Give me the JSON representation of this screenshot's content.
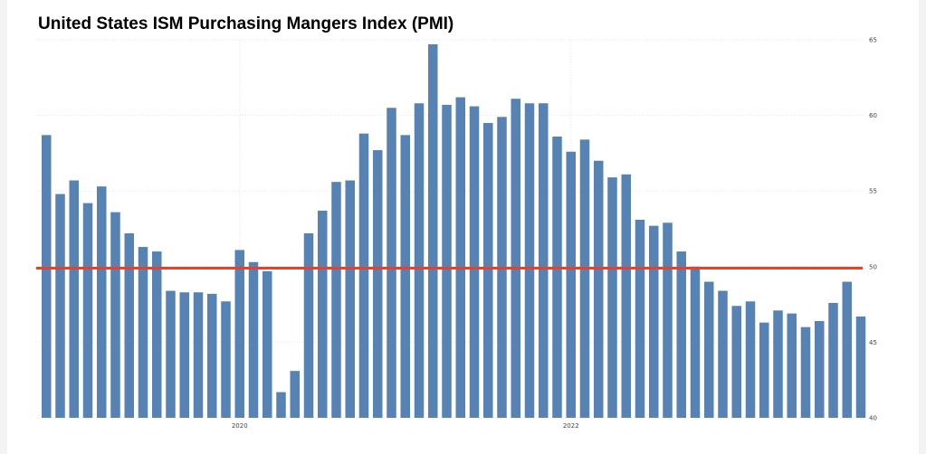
{
  "title": "United States ISM Purchasing Mangers Index (PMI)",
  "colors": {
    "bar": "#5682b4",
    "reference_line": "#e8412a",
    "grid": "#e6e6e6"
  },
  "chart_data": {
    "type": "bar",
    "title": "United States ISM Purchasing Mangers Index (PMI)",
    "xlabel": "",
    "ylabel": "",
    "ylim": [
      40,
      65
    ],
    "y_axis_position": "right",
    "grid": true,
    "yticks": [
      40,
      45,
      50,
      55,
      60,
      65
    ],
    "x_tick_labels": [
      {
        "label": "2020",
        "bar_index": 14
      },
      {
        "label": "2022",
        "bar_index": 38
      }
    ],
    "reference_line": 49.9,
    "values": [
      58.7,
      54.8,
      55.7,
      54.2,
      55.3,
      53.6,
      52.2,
      51.3,
      51.0,
      48.4,
      48.3,
      48.3,
      48.2,
      47.7,
      51.1,
      50.3,
      49.7,
      41.7,
      43.1,
      52.2,
      53.7,
      55.6,
      55.7,
      58.8,
      57.7,
      60.5,
      58.7,
      60.8,
      64.7,
      60.7,
      61.2,
      60.6,
      59.5,
      59.9,
      61.1,
      60.8,
      60.8,
      58.6,
      57.6,
      58.4,
      57.0,
      55.9,
      56.1,
      53.1,
      52.7,
      52.9,
      51.0,
      50.0,
      49.0,
      48.4,
      47.4,
      47.7,
      46.3,
      47.1,
      46.9,
      46.0,
      46.4,
      47.6,
      49.0,
      46.7
    ]
  }
}
